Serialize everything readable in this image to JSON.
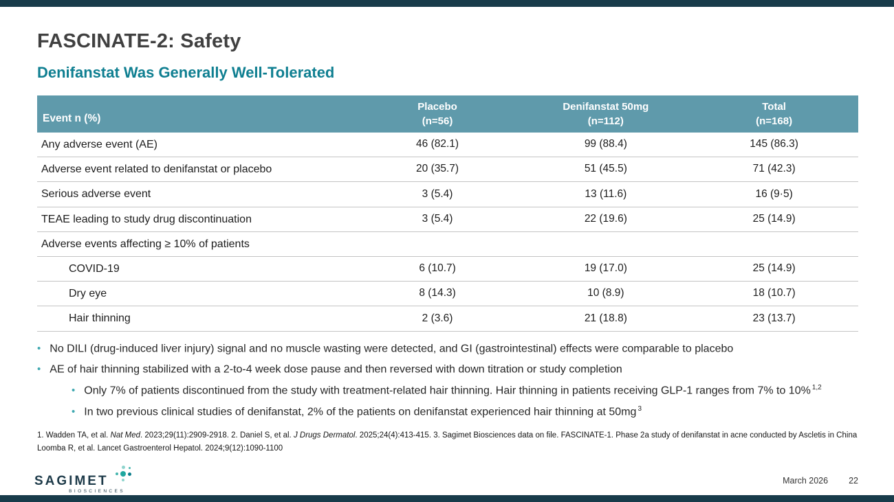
{
  "slide": {
    "title": "FASCINATE-2: Safety",
    "subtitle": "Denifanstat Was Generally Well-Tolerated"
  },
  "colors": {
    "accent_teal": "#0f7f91",
    "table_header": "#5f9aab",
    "bar": "#183b4a",
    "bullet": "#3fa8b0"
  },
  "table": {
    "header": {
      "event": "Event n (%)",
      "cols": [
        {
          "line1": "Placebo",
          "line2": "(n=56)"
        },
        {
          "line1": "Denifanstat 50mg",
          "line2": "(n=112)"
        },
        {
          "line1": "Total",
          "line2": "(n=168)"
        }
      ]
    },
    "rows": [
      {
        "label": "Any adverse event (AE)",
        "values": [
          "46 (82.1)",
          "99 (88.4)",
          "145 (86.3)"
        ]
      },
      {
        "label": "Adverse event related to denifanstat or placebo",
        "values": [
          "20 (35.7)",
          "51 (45.5)",
          "71 (42.3)"
        ]
      },
      {
        "label": "Serious adverse event",
        "values": [
          "3 (5.4)",
          "13 (11.6)",
          "16 (9·5)"
        ]
      },
      {
        "label": "TEAE leading to study drug discontinuation",
        "values": [
          "3 (5.4)",
          "22 (19.6)",
          "25 (14.9)"
        ]
      },
      {
        "label": "Adverse events affecting ≥ 10% of patients",
        "values": [
          "",
          "",
          ""
        ]
      },
      {
        "label": "COVID-19",
        "values": [
          "6 (10.7)",
          "19 (17.0)",
          "25 (14.9)"
        ]
      },
      {
        "label": "Dry eye",
        "values": [
          "8 (14.3)",
          "10 (8.9)",
          "18 (10.7)"
        ]
      },
      {
        "label": "Hair thinning",
        "values": [
          "2 (3.6)",
          "21 (18.8)",
          "23 (13.7)"
        ]
      }
    ]
  },
  "bullets": {
    "items": [
      {
        "text": "No DILI (drug-induced liver injury) signal and no muscle wasting were detected, and GI (gastrointestinal) effects were comparable to placebo",
        "sup": ""
      },
      {
        "text": "AE of hair thinning stabilized with a 2-to-4 week dose pause and then reversed with down titration or study completion",
        "sup": ""
      },
      {
        "text": "Only 7% of patients discontinued from the study with treatment-related hair thinning. Hair thinning in patients receiving GLP-1 ranges from 7% to 10%",
        "sup": "1,2"
      },
      {
        "text": "In two previous clinical studies of denifanstat, 2% of the patients on denifanstat experienced hair thinning at 50mg",
        "sup": "3"
      }
    ]
  },
  "footnotes": {
    "line1": {
      "p1": "1. Wadden TA, et al. ",
      "i1": "Nat Med",
      "p2": ". 2023;29(11):2909-2918.  2. Daniel S, et al. ",
      "i2": "J Drugs Dermatol",
      "p3": ". 2025;24(4):413-415.  3. Sagimet Biosciences data on file. FASCINATE-1. Phase 2a study of denifanstat in acne conducted by Ascletis in China"
    },
    "line2": "Loomba R, et al. Lancet Gastroenterol Hepatol. 2024;9(12):1090-1100"
  },
  "footer": {
    "date": "March 2026",
    "page": "22",
    "logo": {
      "name": "SAGIMET",
      "sub": "BIOSCIENCES"
    }
  }
}
